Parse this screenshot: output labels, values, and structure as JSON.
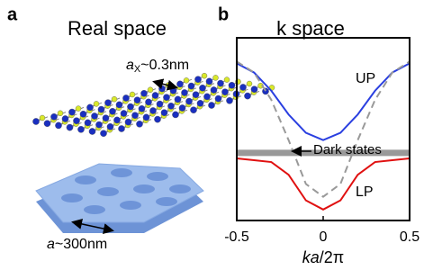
{
  "panel_a": {
    "label": "a",
    "title": "Real space",
    "lattice_constant": {
      "symbol": "a",
      "subscript": "X",
      "value": "~0.3nm"
    },
    "crystal_period": {
      "symbol": "a",
      "value": "~300nm"
    }
  },
  "chart_data": {
    "type": "line",
    "label": "b",
    "title": "k space",
    "x_label": {
      "italic": "ka",
      "rest": "/2π"
    },
    "xlim": [
      -0.5,
      0.5
    ],
    "xticks": [
      -0.5,
      0,
      0.5
    ],
    "ylim": [
      0,
      1
    ],
    "series": [
      {
        "name": "UP",
        "color": "#2a3fe0",
        "style": "solid",
        "x": [
          -0.5,
          -0.4,
          -0.3,
          -0.2,
          -0.1,
          0,
          0.1,
          0.2,
          0.3,
          0.4,
          0.5
        ],
        "values": [
          0.86,
          0.81,
          0.71,
          0.58,
          0.48,
          0.44,
          0.48,
          0.58,
          0.71,
          0.81,
          0.86
        ]
      },
      {
        "color": "#999999",
        "style": "dashed",
        "x": [
          -0.5,
          -0.4,
          -0.3,
          -0.2,
          -0.1,
          0,
          0.1,
          0.2,
          0.3,
          0.4,
          0.5
        ],
        "values": [
          0.87,
          0.81,
          0.66,
          0.44,
          0.2,
          0.13,
          0.2,
          0.44,
          0.66,
          0.81,
          0.87
        ]
      },
      {
        "name": "LP",
        "color": "#e01010",
        "style": "solid",
        "x": [
          -0.5,
          -0.4,
          -0.3,
          -0.2,
          -0.1,
          0,
          0.1,
          0.2,
          0.3,
          0.4,
          0.5
        ],
        "values": [
          0.34,
          0.33,
          0.32,
          0.25,
          0.11,
          0.06,
          0.11,
          0.25,
          0.32,
          0.33,
          0.34
        ]
      },
      {
        "name": "Dark states",
        "color": "#999999",
        "style": "thick",
        "x": [
          -0.5,
          0.5
        ],
        "values": [
          0.37,
          0.37
        ]
      }
    ]
  }
}
